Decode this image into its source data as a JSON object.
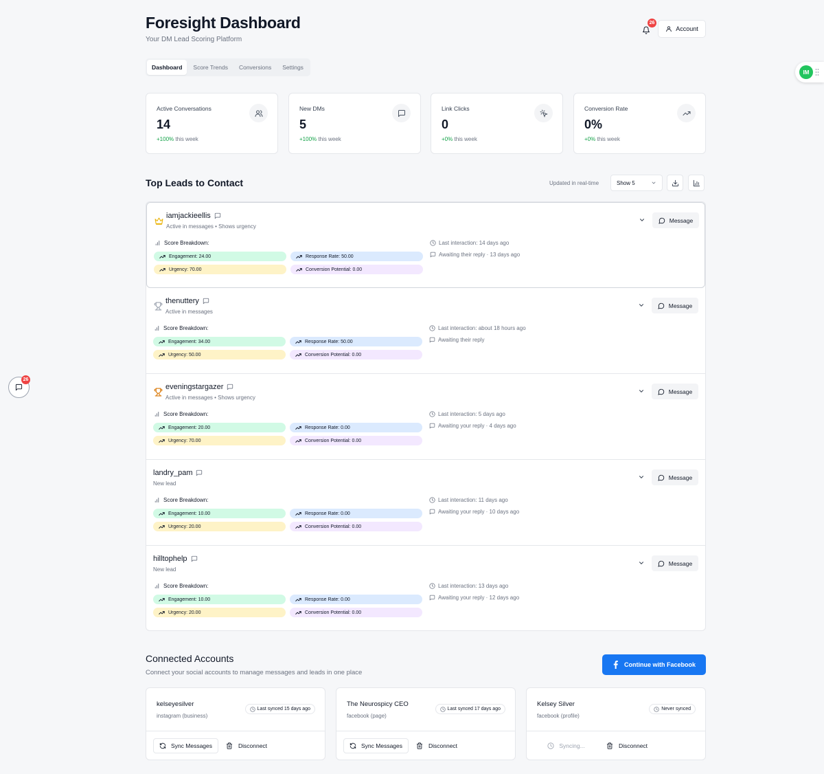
{
  "header": {
    "title": "Foresight Dashboard",
    "subtitle": "Your DM Lead Scoring Platform",
    "notification_count": "26",
    "account_label": "Account"
  },
  "tabs": [
    {
      "label": "Dashboard",
      "active": true
    },
    {
      "label": "Score Trends",
      "active": false
    },
    {
      "label": "Conversions",
      "active": false
    },
    {
      "label": "Settings",
      "active": false
    }
  ],
  "stats": [
    {
      "label": "Active Conversations",
      "value": "14",
      "delta": "+100%",
      "suffix": "this week",
      "icon": "users-icon"
    },
    {
      "label": "New DMs",
      "value": "5",
      "delta": "+100%",
      "suffix": "this week",
      "icon": "message-square-icon"
    },
    {
      "label": "Link Clicks",
      "value": "0",
      "delta": "+0%",
      "suffix": "this week",
      "icon": "pointer-click-icon"
    },
    {
      "label": "Conversion Rate",
      "value": "0%",
      "delta": "+0%",
      "suffix": "this week",
      "icon": "trending-up-icon"
    }
  ],
  "leads_section": {
    "title": "Top Leads to Contact",
    "updated": "Updated in real-time",
    "show_select": "Show 5",
    "score_breakdown_label": "Score Breakdown:",
    "message_label": "Message"
  },
  "leads": [
    {
      "name": "iamjackieellis",
      "desc": "Active in messages • Shows urgency",
      "rank_icon": "crown-icon",
      "rank_color": "#eab308",
      "engagement": "Engagement: 24.00",
      "response": "Response Rate: 50.00",
      "urgency": "Urgency: 70.00",
      "conversion": "Conversion Potential: 0.00",
      "last": "Last interaction: 14 days ago",
      "awaiting": "Awaiting their reply · 13 days ago"
    },
    {
      "name": "thenuttery",
      "desc": "Active in messages",
      "rank_icon": "trophy-icon",
      "rank_color": "#9ca3af",
      "engagement": "Engagement: 34.00",
      "response": "Response Rate: 50.00",
      "urgency": "Urgency: 50.00",
      "conversion": "Conversion Potential: 0.00",
      "last": "Last interaction: about 18 hours ago",
      "awaiting": "Awaiting their reply"
    },
    {
      "name": "eveningstargazer",
      "desc": "Active in messages • Shows urgency",
      "rank_icon": "trophy-icon",
      "rank_color": "#d97706",
      "engagement": "Engagement: 20.00",
      "response": "Response Rate: 0.00",
      "urgency": "Urgency: 70.00",
      "conversion": "Conversion Potential: 0.00",
      "last": "Last interaction: 5 days ago",
      "awaiting": "Awaiting your reply · 4 days ago"
    },
    {
      "name": "landry_pam",
      "desc": "New lead",
      "rank_icon": "",
      "engagement": "Engagement: 10.00",
      "response": "Response Rate: 0.00",
      "urgency": "Urgency: 20.00",
      "conversion": "Conversion Potential: 0.00",
      "last": "Last interaction: 11 days ago",
      "awaiting": "Awaiting your reply · 10 days ago"
    },
    {
      "name": "hilltophelp",
      "desc": "New lead",
      "rank_icon": "",
      "engagement": "Engagement: 10.00",
      "response": "Response Rate: 0.00",
      "urgency": "Urgency: 20.00",
      "conversion": "Conversion Potential: 0.00",
      "last": "Last interaction: 13 days ago",
      "awaiting": "Awaiting your reply · 12 days ago"
    }
  ],
  "connected": {
    "title": "Connected Accounts",
    "subtitle": "Connect your social accounts to manage messages and leads in one place",
    "fb_button": "Continue with Facebook",
    "accounts": [
      {
        "name": "kelseyesilver",
        "type": "instagram (business)",
        "sync": "Last synced 15 days ago",
        "sync_label": "Sync Messages",
        "disconnect": "Disconnect"
      },
      {
        "name": "The Neurospicy CEO",
        "type": "facebook (page)",
        "sync": "Last synced 17 days ago",
        "sync_label": "Sync Messages",
        "disconnect": "Disconnect"
      },
      {
        "name": "Kelsey Silver",
        "type": "facebook (profile)",
        "sync": "Never synced",
        "sync_label": "Syncing...",
        "disconnect": "Disconnect"
      }
    ]
  },
  "floating": {
    "chat_badge": "26",
    "widget_logo": "IM"
  },
  "colors": {
    "accent": "#1877f2",
    "positive": "#16a34a",
    "badge": "#ef4444"
  }
}
